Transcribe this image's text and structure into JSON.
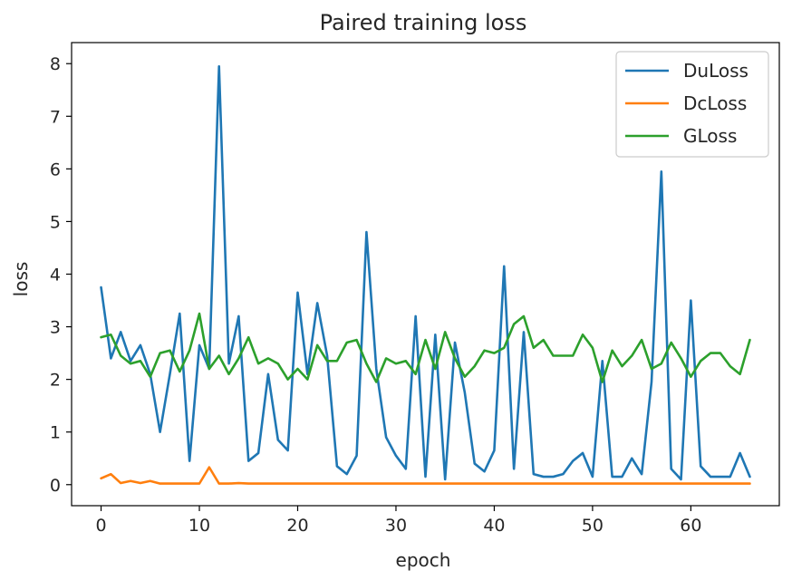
{
  "chart_data": {
    "type": "line",
    "title": "Paired training loss",
    "xlabel": "epoch",
    "ylabel": "loss",
    "xlim": [
      -3,
      69
    ],
    "ylim": [
      -0.4,
      8.4
    ],
    "xticks": [
      0,
      10,
      20,
      30,
      40,
      50,
      60
    ],
    "yticks": [
      0,
      1,
      2,
      3,
      4,
      5,
      6,
      7,
      8
    ],
    "grid": false,
    "legend_position": "top-right",
    "x": [
      0,
      1,
      2,
      3,
      4,
      5,
      6,
      7,
      8,
      9,
      10,
      11,
      12,
      13,
      14,
      15,
      16,
      17,
      18,
      19,
      20,
      21,
      22,
      23,
      24,
      25,
      26,
      27,
      28,
      29,
      30,
      31,
      32,
      33,
      34,
      35,
      36,
      37,
      38,
      39,
      40,
      41,
      42,
      43,
      44,
      45,
      46,
      47,
      48,
      49,
      50,
      51,
      52,
      53,
      54,
      55,
      56,
      57,
      58,
      59,
      60,
      61,
      62,
      63,
      64,
      65,
      66
    ],
    "series": [
      {
        "name": "DuLoss",
        "color": "#1f77b4",
        "values": [
          3.75,
          2.4,
          2.9,
          2.35,
          2.65,
          2.1,
          1.0,
          2.1,
          3.25,
          0.45,
          2.65,
          2.2,
          7.95,
          2.3,
          3.2,
          0.45,
          0.6,
          2.1,
          0.85,
          0.65,
          3.65,
          2.1,
          3.45,
          2.45,
          0.35,
          0.2,
          0.55,
          4.8,
          2.2,
          0.9,
          0.55,
          0.3,
          3.2,
          0.15,
          2.85,
          0.1,
          2.7,
          1.75,
          0.4,
          0.25,
          0.65,
          4.15,
          0.3,
          2.9,
          0.2,
          0.15,
          0.15,
          0.2,
          0.45,
          0.6,
          0.15,
          2.35,
          0.15,
          0.15,
          0.5,
          0.2,
          1.95,
          5.95,
          0.3,
          0.1,
          3.5,
          0.35,
          0.15,
          0.15,
          0.15,
          0.6,
          0.15
        ]
      },
      {
        "name": "DcLoss",
        "color": "#ff7f0e",
        "values": [
          0.12,
          0.2,
          0.03,
          0.07,
          0.03,
          0.07,
          0.02,
          0.02,
          0.02,
          0.02,
          0.02,
          0.33,
          0.02,
          0.02,
          0.03,
          0.02,
          0.02,
          0.02,
          0.02,
          0.02,
          0.02,
          0.02,
          0.02,
          0.02,
          0.02,
          0.02,
          0.02,
          0.02,
          0.02,
          0.02,
          0.02,
          0.02,
          0.02,
          0.02,
          0.02,
          0.02,
          0.02,
          0.02,
          0.02,
          0.02,
          0.02,
          0.02,
          0.02,
          0.02,
          0.02,
          0.02,
          0.02,
          0.02,
          0.02,
          0.02,
          0.02,
          0.02,
          0.02,
          0.02,
          0.02,
          0.02,
          0.02,
          0.02,
          0.02,
          0.02,
          0.02,
          0.02,
          0.02,
          0.02,
          0.02,
          0.02,
          0.02
        ]
      },
      {
        "name": "GLoss",
        "color": "#2ca02c",
        "values": [
          2.8,
          2.85,
          2.45,
          2.3,
          2.35,
          2.05,
          2.5,
          2.55,
          2.15,
          2.55,
          3.25,
          2.2,
          2.45,
          2.1,
          2.4,
          2.8,
          2.3,
          2.4,
          2.3,
          2.0,
          2.2,
          2.0,
          2.65,
          2.35,
          2.35,
          2.7,
          2.75,
          2.3,
          1.95,
          2.4,
          2.3,
          2.35,
          2.1,
          2.75,
          2.2,
          2.9,
          2.4,
          2.05,
          2.25,
          2.55,
          2.5,
          2.6,
          3.05,
          3.2,
          2.6,
          2.75,
          2.45,
          2.45,
          2.45,
          2.85,
          2.6,
          1.95,
          2.55,
          2.25,
          2.45,
          2.75,
          2.2,
          2.3,
          2.7,
          2.4,
          2.05,
          2.35,
          2.5,
          2.5,
          2.25,
          2.1,
          2.75
        ]
      }
    ]
  }
}
